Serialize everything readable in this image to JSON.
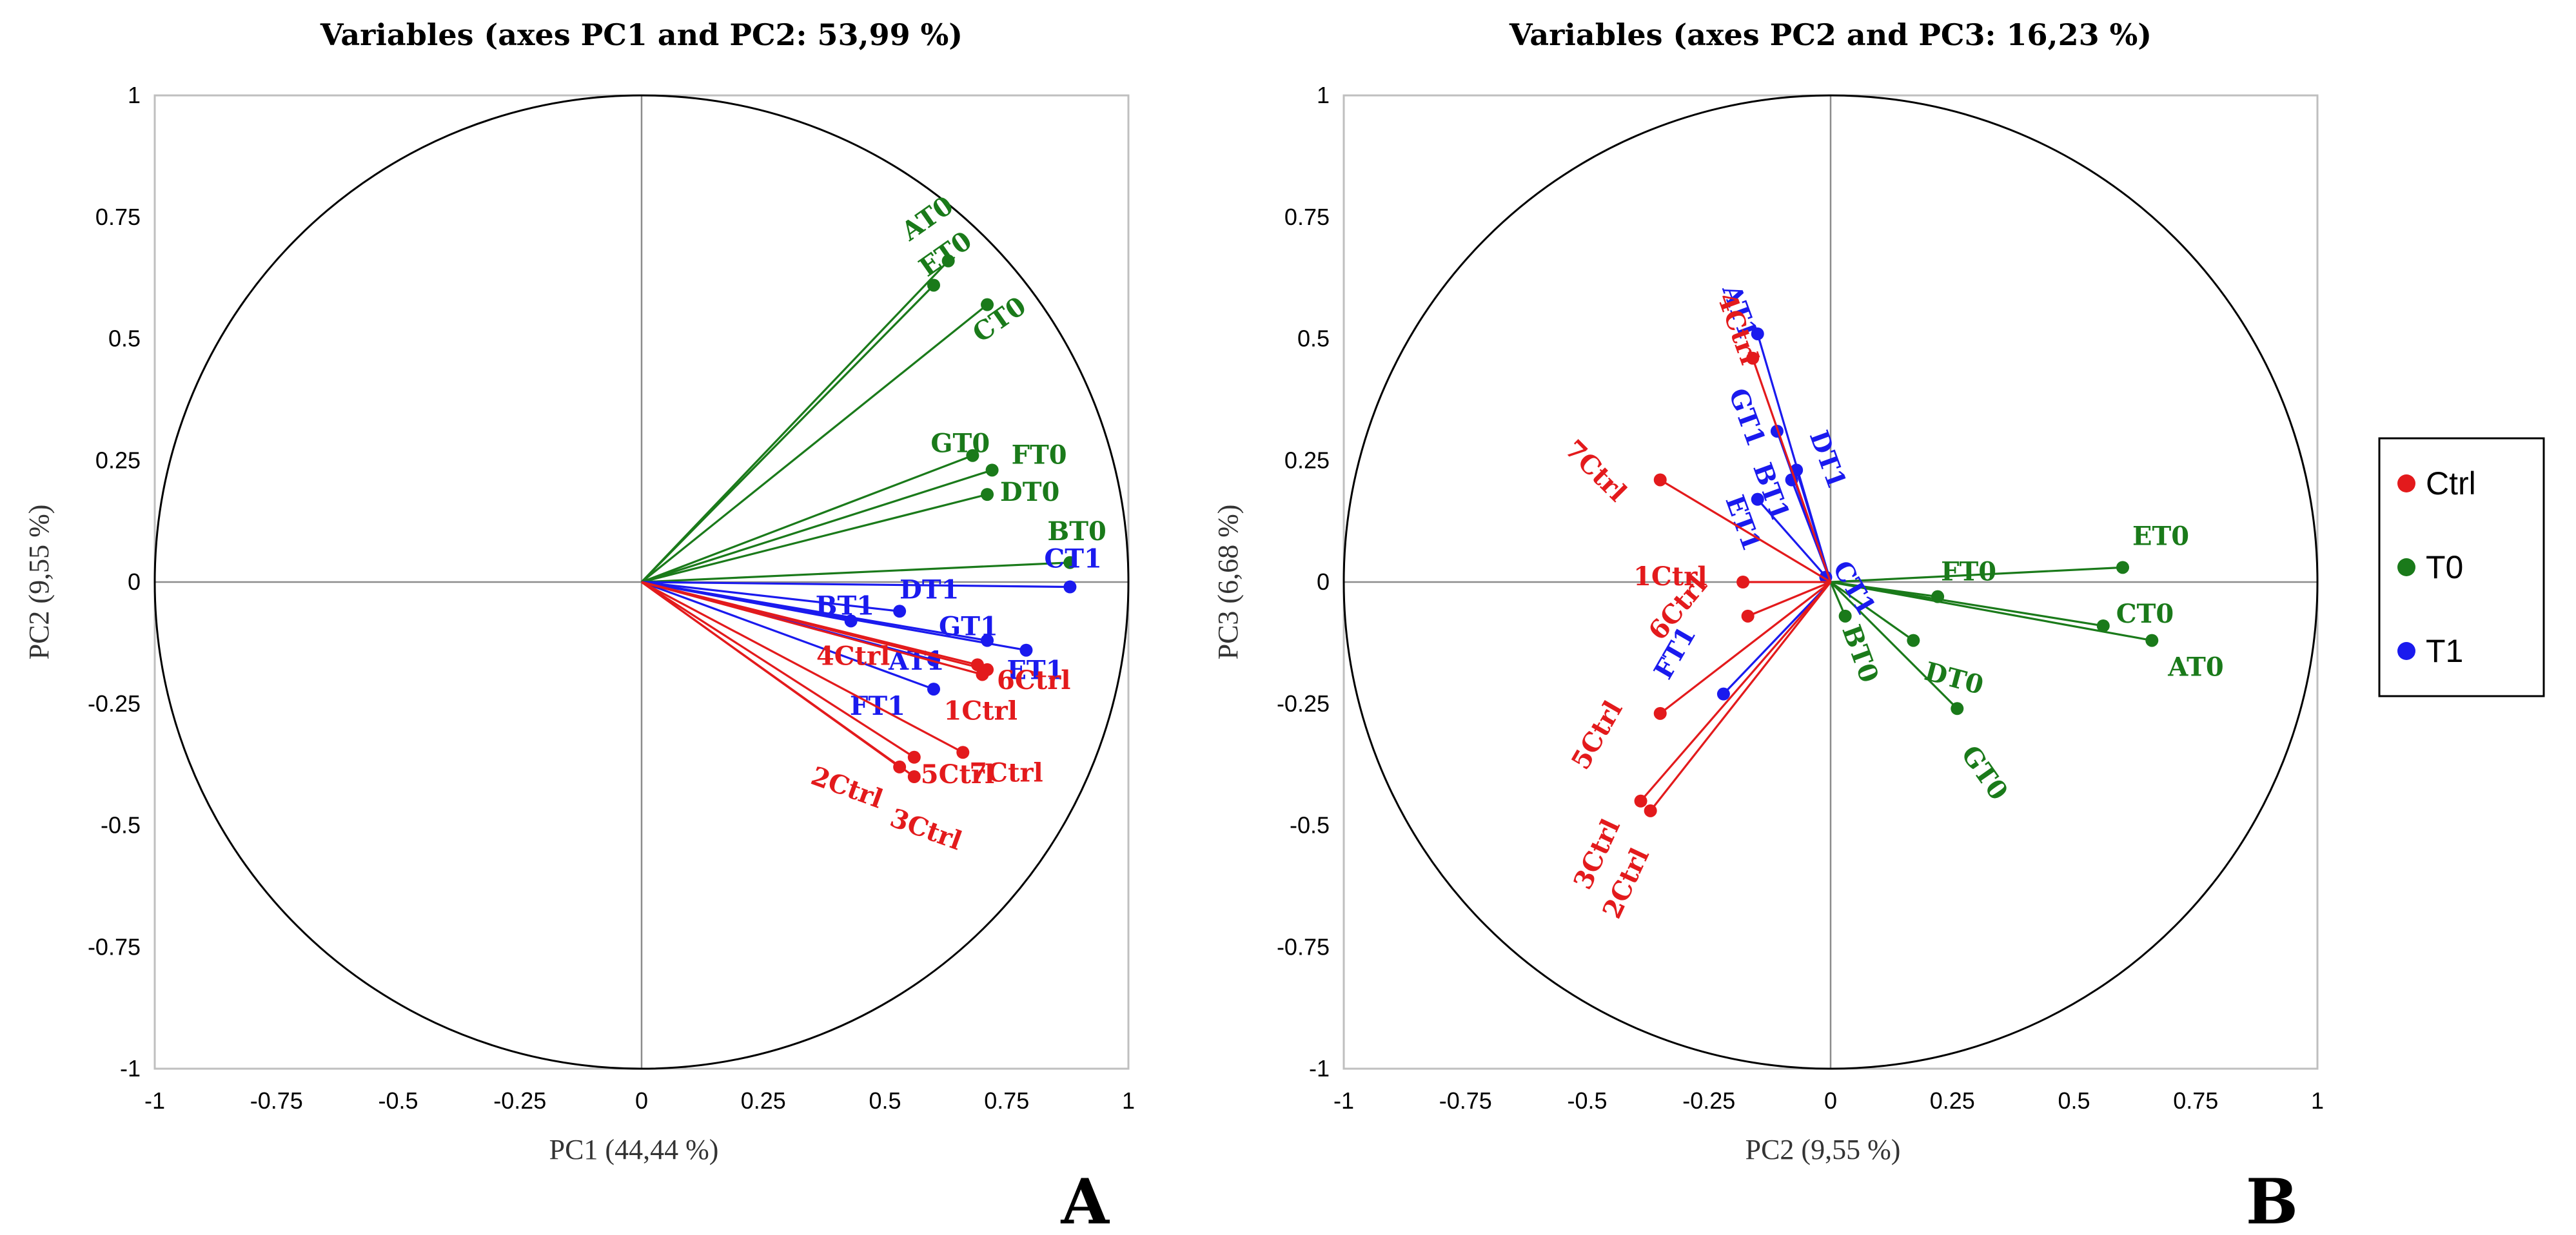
{
  "legend": [
    {
      "name": "Ctrl",
      "color": "#e31a1c"
    },
    {
      "name": "T0",
      "color": "#1a7a1a"
    },
    {
      "name": "T1",
      "color": "#1a1aee"
    }
  ],
  "chart_data": [
    {
      "type": "scatter",
      "subtype": "pca-correlation-circle",
      "panel": "A",
      "title": "Variables (axes PC1 and PC2: 53,99 %)",
      "xlabel": "PC1 (44,44 %)",
      "ylabel": "PC2 (9,55 %)",
      "xlim": [
        -1,
        1
      ],
      "ylim": [
        -1,
        1
      ],
      "xticks": [
        "-1",
        "-0.75",
        "-0.5",
        "-0.25",
        "0",
        "0.25",
        "0.5",
        "0.75",
        "1"
      ],
      "yticks": [
        "-1",
        "-0.75",
        "-0.5",
        "-0.25",
        "0",
        "0.25",
        "0.5",
        "0.75",
        "1"
      ],
      "series": [
        {
          "name": "T0",
          "points": [
            {
              "label": "AT0",
              "x": 0.63,
              "y": 0.66
            },
            {
              "label": "ET0",
              "x": 0.6,
              "y": 0.61
            },
            {
              "label": "CT0",
              "x": 0.71,
              "y": 0.57
            },
            {
              "label": "GT0",
              "x": 0.68,
              "y": 0.26
            },
            {
              "label": "FT0",
              "x": 0.72,
              "y": 0.23
            },
            {
              "label": "DT0",
              "x": 0.71,
              "y": 0.18
            },
            {
              "label": "BT0",
              "x": 0.88,
              "y": 0.04
            }
          ]
        },
        {
          "name": "T1",
          "points": [
            {
              "label": "CT1",
              "x": 0.88,
              "y": -0.01
            },
            {
              "label": "DT1",
              "x": 0.53,
              "y": -0.06
            },
            {
              "label": "BT1",
              "x": 0.43,
              "y": -0.08
            },
            {
              "label": "GT1",
              "x": 0.71,
              "y": -0.12
            },
            {
              "label": "ET1",
              "x": 0.79,
              "y": -0.14
            },
            {
              "label": "AT1",
              "x": 0.6,
              "y": -0.16
            },
            {
              "label": "FT1",
              "x": 0.6,
              "y": -0.22
            }
          ]
        },
        {
          "name": "Ctrl",
          "points": [
            {
              "label": "6Ctrl",
              "x": 0.71,
              "y": -0.18
            },
            {
              "label": "4Ctrl",
              "x": 0.69,
              "y": -0.17
            },
            {
              "label": "1Ctrl",
              "x": 0.7,
              "y": -0.19
            },
            {
              "label": "7Ctrl",
              "x": 0.66,
              "y": -0.35
            },
            {
              "label": "5Ctrl",
              "x": 0.56,
              "y": -0.36
            },
            {
              "label": "2Ctrl",
              "x": 0.53,
              "y": -0.38
            },
            {
              "label": "3Ctrl",
              "x": 0.56,
              "y": -0.4
            }
          ]
        }
      ]
    },
    {
      "type": "scatter",
      "subtype": "pca-correlation-circle",
      "panel": "B",
      "title": "Variables (axes PC2 and PC3: 16,23 %)",
      "xlabel": "PC2 (9,55 %)",
      "ylabel": "PC3 (6,68 %)",
      "xlim": [
        -1,
        1
      ],
      "ylim": [
        -1,
        1
      ],
      "xticks": [
        "-1",
        "-0.75",
        "-0.5",
        "-0.25",
        "0",
        "0.25",
        "0.5",
        "0.75",
        "1"
      ],
      "yticks": [
        "-1",
        "-0.75",
        "-0.5",
        "-0.25",
        "0",
        "0.25",
        "0.5",
        "0.75",
        "1"
      ],
      "series": [
        {
          "name": "T0",
          "points": [
            {
              "label": "ET0",
              "x": 0.6,
              "y": 0.03
            },
            {
              "label": "CT0",
              "x": 0.56,
              "y": -0.09
            },
            {
              "label": "AT0",
              "x": 0.66,
              "y": -0.12
            },
            {
              "label": "FT0",
              "x": 0.22,
              "y": -0.03
            },
            {
              "label": "DT0",
              "x": 0.17,
              "y": -0.12
            },
            {
              "label": "GT0",
              "x": 0.26,
              "y": -0.26
            },
            {
              "label": "BT0",
              "x": 0.03,
              "y": -0.07
            }
          ]
        },
        {
          "name": "T1",
          "points": [
            {
              "label": "AT1",
              "x": -0.15,
              "y": 0.51
            },
            {
              "label": "GT1",
              "x": -0.11,
              "y": 0.31
            },
            {
              "label": "DT1",
              "x": -0.07,
              "y": 0.23
            },
            {
              "label": "BT1",
              "x": -0.08,
              "y": 0.21
            },
            {
              "label": "ET1",
              "x": -0.15,
              "y": 0.17
            },
            {
              "label": "CT1",
              "x": -0.01,
              "y": 0.01
            },
            {
              "label": "FT1",
              "x": -0.22,
              "y": -0.23
            }
          ]
        },
        {
          "name": "Ctrl",
          "points": [
            {
              "label": "4Ctrl",
              "x": -0.16,
              "y": 0.46
            },
            {
              "label": "7Ctrl",
              "x": -0.35,
              "y": 0.21
            },
            {
              "label": "1Ctrl",
              "x": -0.18,
              "y": 0.0
            },
            {
              "label": "6Ctrl",
              "x": -0.17,
              "y": -0.07
            },
            {
              "label": "5Ctrl",
              "x": -0.35,
              "y": -0.27
            },
            {
              "label": "3Ctrl",
              "x": -0.39,
              "y": -0.45
            },
            {
              "label": "2Ctrl",
              "x": -0.37,
              "y": -0.47
            }
          ]
        }
      ]
    }
  ]
}
